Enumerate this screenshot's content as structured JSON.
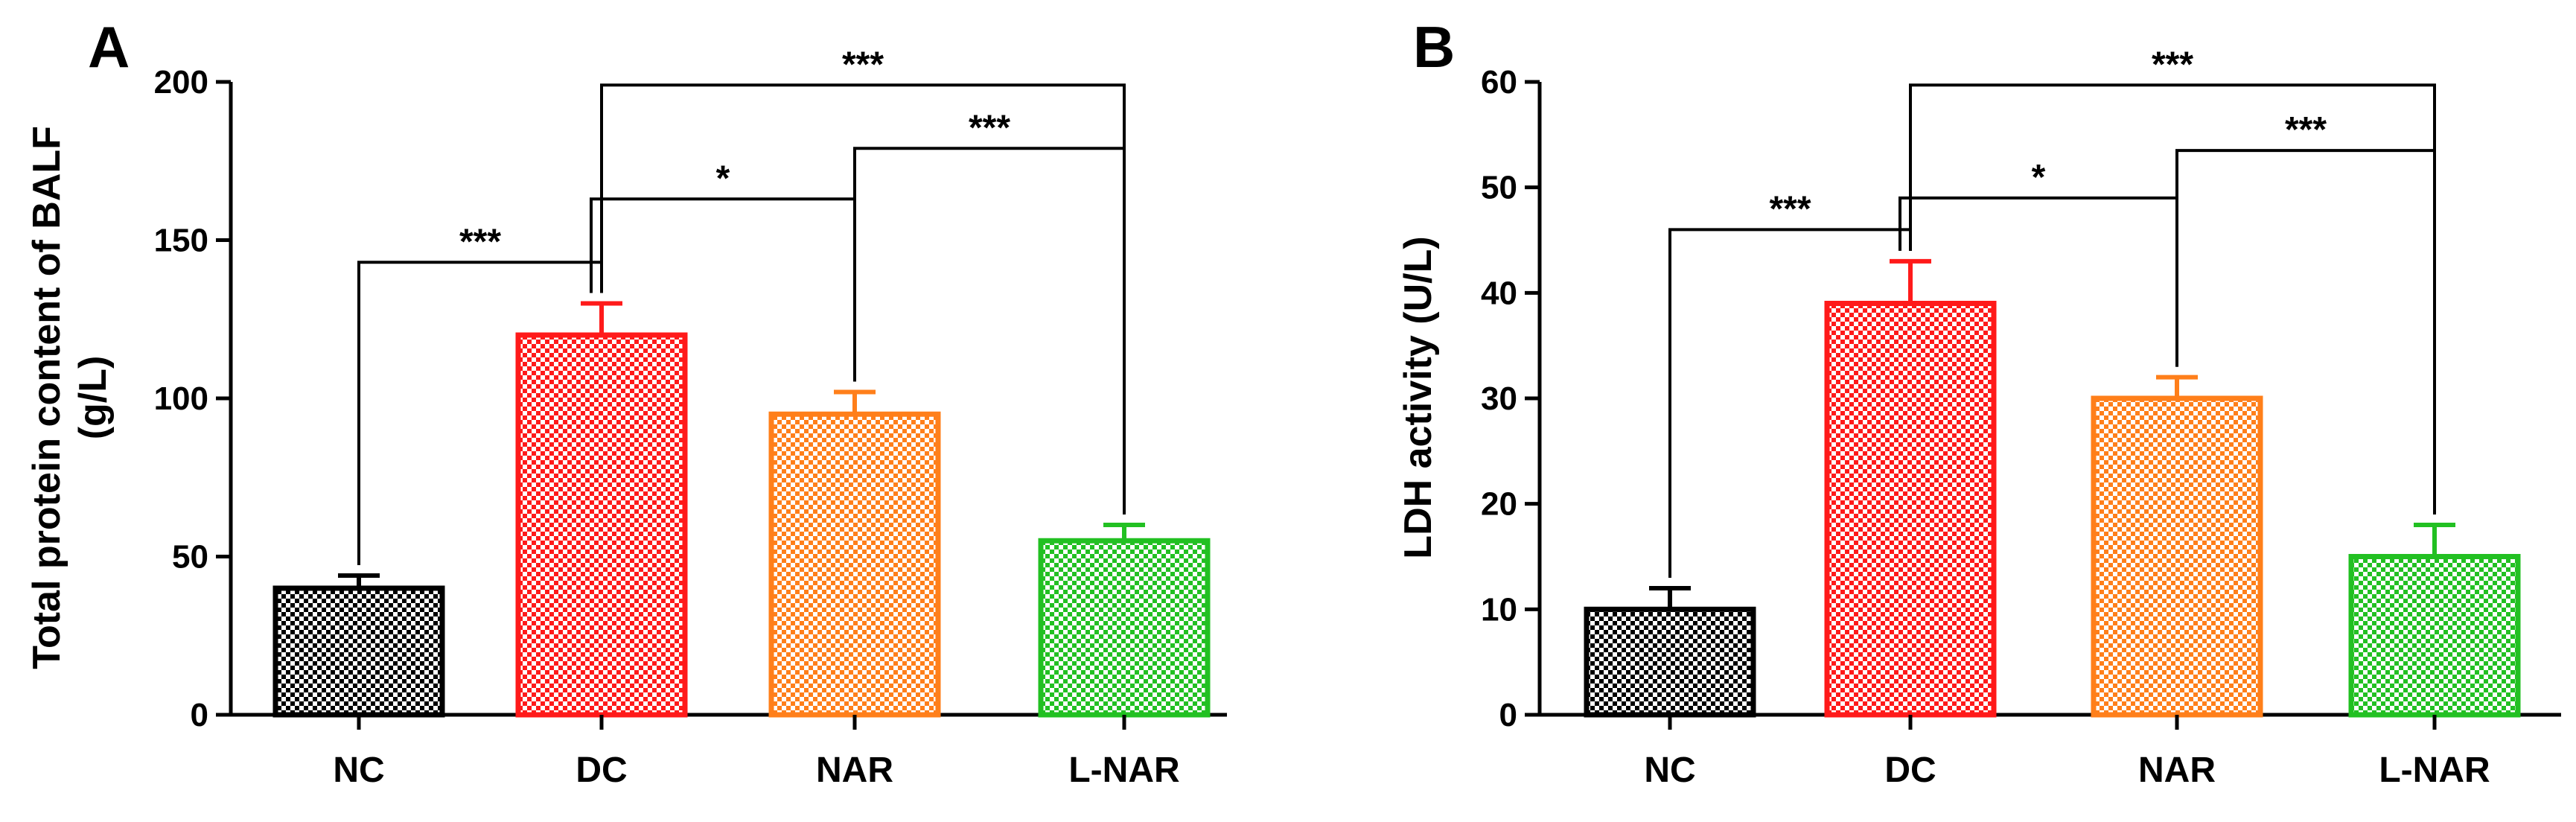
{
  "chart_data": [
    {
      "panel": "A",
      "type": "bar",
      "ylabel_line1": "Total protein content of BALF",
      "ylabel_line2": "(g/L)",
      "xlabel": "",
      "ylim": [
        0,
        200
      ],
      "yticks": [
        0,
        50,
        100,
        150,
        200
      ],
      "categories": [
        "NC",
        "DC",
        "NAR",
        "L-NAR"
      ],
      "values": [
        40,
        120,
        95,
        55
      ],
      "errors": [
        4,
        10,
        7,
        5
      ],
      "colors": [
        "#000000",
        "#ff1a1a",
        "#ff7f1a",
        "#22c022"
      ],
      "significance": [
        {
          "from": 0,
          "to": 1,
          "label": "***",
          "level": 143
        },
        {
          "from": 1,
          "to": 2,
          "label": "*",
          "level": 163
        },
        {
          "from": 2,
          "to": 3,
          "label": "***",
          "level": 179
        },
        {
          "from": 1,
          "to": 3,
          "label": "***",
          "level": 199
        }
      ]
    },
    {
      "panel": "B",
      "type": "bar",
      "ylabel_line1": "LDH activity (U/L)",
      "ylabel_line2": "",
      "xlabel": "",
      "ylim": [
        0,
        60
      ],
      "yticks": [
        0,
        10,
        20,
        30,
        40,
        50,
        60
      ],
      "categories": [
        "NC",
        "DC",
        "NAR",
        "L-NAR"
      ],
      "values": [
        10,
        39,
        30,
        15
      ],
      "errors": [
        2,
        4,
        2,
        3
      ],
      "colors": [
        "#000000",
        "#ff1a1a",
        "#ff7f1a",
        "#22c022"
      ],
      "significance": [
        {
          "from": 0,
          "to": 1,
          "label": "***",
          "level": 46
        },
        {
          "from": 1,
          "to": 2,
          "label": "*",
          "level": 49
        },
        {
          "from": 2,
          "to": 3,
          "label": "***",
          "level": 53.5
        },
        {
          "from": 1,
          "to": 3,
          "label": "***",
          "level": 59.7
        }
      ]
    }
  ]
}
